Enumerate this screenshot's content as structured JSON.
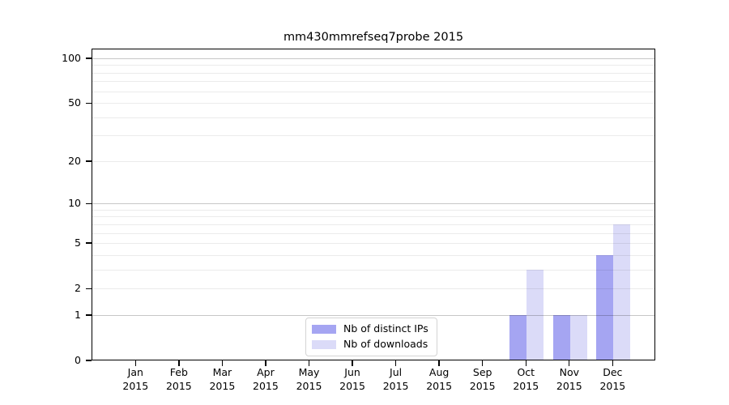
{
  "chart_data": {
    "type": "bar",
    "title": "mm430mmrefseq7probe 2015",
    "categories": [
      "Jan 2015",
      "Feb 2015",
      "Mar 2015",
      "Apr 2015",
      "May 2015",
      "Jun 2015",
      "Jul 2015",
      "Aug 2015",
      "Sep 2015",
      "Oct 2015",
      "Nov 2015",
      "Dec 2015"
    ],
    "series": [
      {
        "name": "Nb of distinct IPs",
        "color": "#a5a5f2",
        "values": [
          0,
          0,
          0,
          0,
          0,
          0,
          0,
          0,
          0,
          1,
          1,
          4
        ]
      },
      {
        "name": "Nb of downloads",
        "color": "#dbdbf8",
        "values": [
          0,
          0,
          0,
          0,
          0,
          0,
          0,
          0,
          0,
          3,
          1,
          7
        ]
      }
    ],
    "yscale": "log1p",
    "ytick_labels": [
      "0",
      "1",
      "2",
      "5",
      "10",
      "20",
      "50",
      "100"
    ],
    "ytick_values": [
      0,
      1,
      2,
      5,
      10,
      20,
      50,
      100
    ],
    "ylim": [
      0,
      117
    ],
    "grid": {
      "minor_values": [
        2,
        3,
        4,
        5,
        6,
        7,
        8,
        9,
        20,
        30,
        40,
        50,
        60,
        70,
        80,
        90
      ],
      "major_values": [
        1,
        10,
        100
      ],
      "minor_color": "#ebebeb",
      "major_color": "#c7c7c7"
    },
    "legend": {
      "location": "lower center inside plot"
    }
  }
}
